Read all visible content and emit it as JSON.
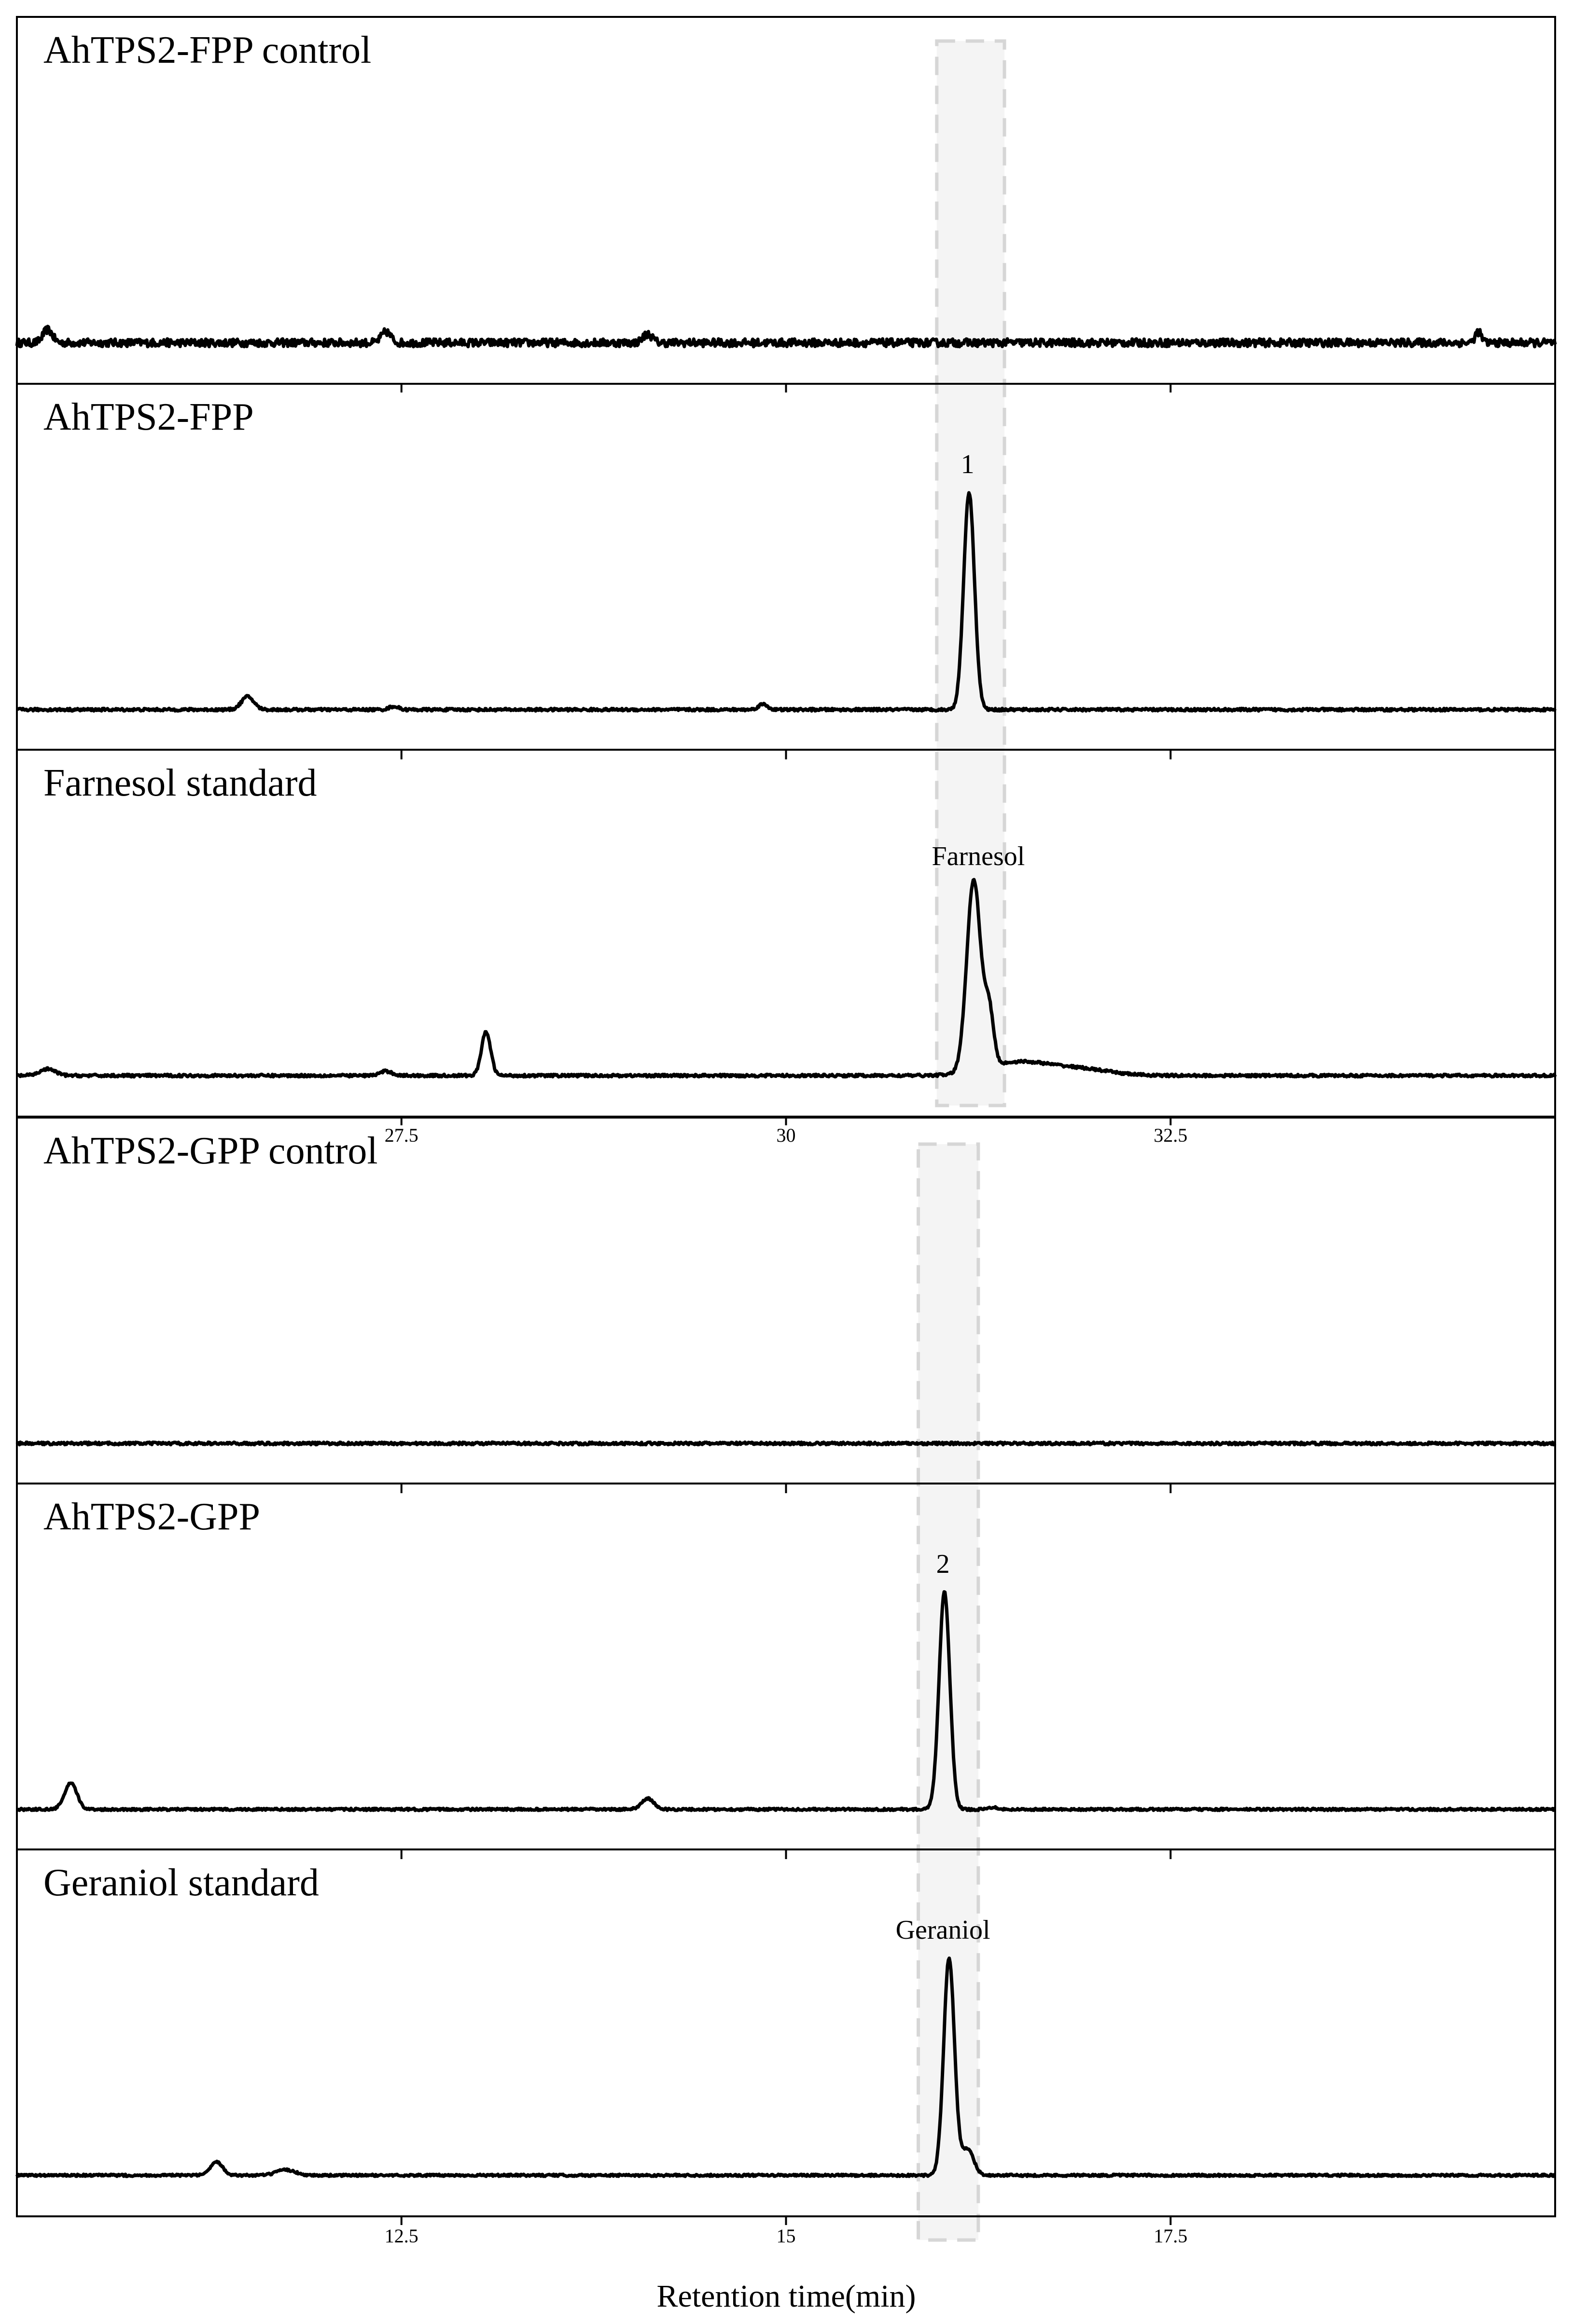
{
  "chart_data": {
    "type": "line",
    "xlabel": "Retention time(min)",
    "groups": [
      {
        "name": "FPP",
        "xlim": [
          25,
          35
        ],
        "xticks": [
          27.5,
          30,
          32.5
        ],
        "xtick_labels": [
          "27.5",
          "30",
          "32.5"
        ],
        "highlight_range": [
          30.98,
          31.42
        ],
        "panels": [
          {
            "title": "AhTPS2-FPP control",
            "peak_label": "",
            "baseline_noise": 0.018,
            "peaks": [
              [
                25.2,
                0.06,
                0.03
              ],
              [
                27.4,
                0.05,
                0.03
              ],
              [
                29.1,
                0.04,
                0.03
              ],
              [
                34.5,
                0.05,
                0.02
              ]
            ]
          },
          {
            "title": "AhTPS2-FPP",
            "peak_label": "1",
            "label_x": 31.18,
            "baseline_noise": 0.006,
            "peaks": [
              [
                26.5,
                0.06,
                0.04
              ],
              [
                27.45,
                0.015,
                0.03
              ],
              [
                29.85,
                0.025,
                0.03
              ],
              [
                31.19,
                1.0,
                0.035
              ]
            ]
          },
          {
            "title": "Farnesol standard",
            "peak_label": "Farnesol",
            "label_x": 31.25,
            "baseline_noise": 0.006,
            "peaks": [
              [
                25.2,
                0.03,
                0.05
              ],
              [
                27.4,
                0.02,
                0.04
              ],
              [
                28.05,
                0.2,
                0.03
              ],
              [
                31.22,
                0.88,
                0.045
              ],
              [
                31.32,
                0.25,
                0.03
              ],
              [
                31.5,
                0.06,
                0.2
              ],
              [
                31.9,
                0.03,
                0.2
              ]
            ]
          }
        ]
      },
      {
        "name": "GPP",
        "xlim": [
          10,
          20
        ],
        "xticks": [
          12.5,
          15,
          17.5
        ],
        "xtick_labels": [
          "12.5",
          "15",
          "17.5"
        ],
        "highlight_range": [
          15.86,
          16.25
        ],
        "panels": [
          {
            "title": "AhTPS2-GPP control",
            "peak_label": "",
            "baseline_noise": 0.006,
            "peaks": []
          },
          {
            "title": "AhTPS2-GPP",
            "peak_label": "2",
            "label_x": 16.02,
            "baseline_noise": 0.005,
            "peaks": [
              [
                10.35,
                0.12,
                0.04
              ],
              [
                14.1,
                0.05,
                0.04
              ],
              [
                16.03,
                1.0,
                0.035
              ],
              [
                16.35,
                0.01,
                0.03
              ]
            ]
          },
          {
            "title": "Geraniol standard",
            "peak_label": "Geraniol",
            "label_x": 16.02,
            "baseline_noise": 0.005,
            "peaks": [
              [
                11.3,
                0.06,
                0.04
              ],
              [
                11.75,
                0.025,
                0.06
              ],
              [
                16.06,
                1.0,
                0.035
              ],
              [
                16.18,
                0.12,
                0.04
              ]
            ]
          }
        ]
      }
    ]
  }
}
